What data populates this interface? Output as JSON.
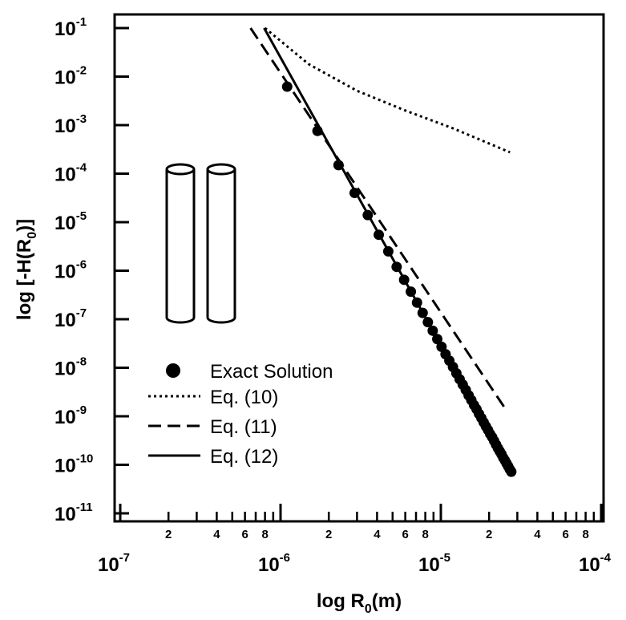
{
  "chart_data": {
    "type": "line",
    "xscale": "log",
    "yscale": "log",
    "xlabel": [
      "log R",
      "0",
      "(m)"
    ],
    "ylabel": [
      "log [-H(R",
      "0",
      ")]"
    ],
    "xlim": [
      1e-07,
      0.0001
    ],
    "ylim": [
      1e-11,
      0.1
    ],
    "xticks": [
      {
        "value": 1e-07,
        "label": [
          "10",
          "-7"
        ]
      },
      {
        "value": 1e-06,
        "label": [
          "10",
          "-6"
        ]
      },
      {
        "value": 1e-05,
        "label": [
          "10",
          "-5"
        ]
      },
      {
        "value": 0.0001,
        "label": [
          "10",
          "-4"
        ]
      }
    ],
    "xminorticks": [
      {
        "value": 2e-07,
        "label": "2"
      },
      {
        "value": 3e-07,
        "label": null
      },
      {
        "value": 4e-07,
        "label": "4"
      },
      {
        "value": 5e-07,
        "label": null
      },
      {
        "value": 6e-07,
        "label": "6"
      },
      {
        "value": 7e-07,
        "label": null
      },
      {
        "value": 8e-07,
        "label": "8"
      },
      {
        "value": 9e-07,
        "label": null
      },
      {
        "value": 2e-06,
        "label": "2"
      },
      {
        "value": 3e-06,
        "label": null
      },
      {
        "value": 4e-06,
        "label": "4"
      },
      {
        "value": 5e-06,
        "label": null
      },
      {
        "value": 6e-06,
        "label": "6"
      },
      {
        "value": 7e-06,
        "label": null
      },
      {
        "value": 8e-06,
        "label": "8"
      },
      {
        "value": 9e-06,
        "label": null
      },
      {
        "value": 2e-05,
        "label": "2"
      },
      {
        "value": 3e-05,
        "label": null
      },
      {
        "value": 4e-05,
        "label": "4"
      },
      {
        "value": 5e-05,
        "label": null
      },
      {
        "value": 6e-05,
        "label": "6"
      },
      {
        "value": 7e-05,
        "label": null
      },
      {
        "value": 8e-05,
        "label": "8"
      },
      {
        "value": 9e-05,
        "label": null
      }
    ],
    "yticks": [
      {
        "value": 0.1,
        "label": [
          "10",
          "-1"
        ]
      },
      {
        "value": 0.01,
        "label": [
          "10",
          "-2"
        ]
      },
      {
        "value": 0.001,
        "label": [
          "10",
          "-3"
        ]
      },
      {
        "value": 0.0001,
        "label": [
          "10",
          "-4"
        ]
      },
      {
        "value": 1e-05,
        "label": [
          "10",
          "-5"
        ]
      },
      {
        "value": 1e-06,
        "label": [
          "10",
          "-6"
        ]
      },
      {
        "value": 1e-07,
        "label": [
          "10",
          "-7"
        ]
      },
      {
        "value": 1e-08,
        "label": [
          "10",
          "-8"
        ]
      },
      {
        "value": 1e-09,
        "label": [
          "10",
          "-9"
        ]
      },
      {
        "value": 1e-10,
        "label": [
          "10",
          "-10"
        ]
      },
      {
        "value": 1e-11,
        "label": [
          "10",
          "-11"
        ]
      }
    ],
    "legend": "lower left",
    "series": [
      {
        "name": "Exact Solution",
        "mode": "markers",
        "color": "#000000",
        "x": [
          1.1e-06,
          1.7e-06,
          2.3e-06,
          2.9e-06,
          3.5e-06,
          4.1e-06,
          4.7e-06,
          5.3e-06,
          5.9e-06,
          6.5e-06,
          7.1e-06,
          7.7e-06,
          8.3e-06,
          8.9e-06,
          9.5e-06,
          1.01e-05,
          1.07e-05,
          1.13e-05,
          1.19e-05,
          1.25e-05,
          1.31e-05,
          1.37e-05,
          1.43e-05,
          1.49e-05,
          1.55e-05,
          1.61e-05,
          1.67e-05,
          1.73e-05,
          1.79e-05,
          1.85e-05,
          1.91e-05,
          1.97e-05,
          2.03e-05,
          2.09e-05,
          2.15e-05,
          2.21e-05,
          2.27e-05,
          2.33e-05,
          2.39e-05,
          2.45e-05,
          2.51e-05,
          2.57e-05,
          2.63e-05,
          2.69e-05,
          2.75e-05
        ],
        "values": [
          0.0062,
          0.00076,
          0.00015,
          4e-05,
          1.4e-05,
          5.5e-06,
          2.5e-06,
          1.2e-06,
          6.5e-07,
          3.7e-07,
          2.2e-07,
          1.35e-07,
          8.7e-08,
          5.8e-08,
          3.9e-08,
          2.7e-08,
          1.9e-08,
          1.4e-08,
          1.04e-08,
          7.7e-09,
          5.8e-09,
          4.5e-09,
          3.5e-09,
          2.7e-09,
          2.15e-09,
          1.7e-09,
          1.4e-09,
          1.12e-09,
          9.2e-10,
          7.5e-10,
          6.2e-10,
          5.2e-10,
          4.3e-10,
          3.7e-10,
          3.1e-10,
          2.6e-10,
          2.2e-10,
          1.9e-10,
          1.65e-10,
          1.4e-10,
          1.23e-10,
          1.07e-10,
          9.3e-11,
          8.1e-11,
          7.2e-11
        ]
      },
      {
        "name": "Eq. (10)",
        "mode": "line",
        "dash": "dotted",
        "color": "#000000",
        "x": [
          8e-07,
          1.5e-06,
          3e-06,
          6e-06,
          1.2e-05,
          2.7e-05
        ],
        "values": [
          0.1,
          0.018,
          0.0051,
          0.002,
          0.00085,
          0.000275
        ]
      },
      {
        "name": "Eq. (11)",
        "mode": "line",
        "dash": "dashed",
        "color": "#000000",
        "x": [
          6.5e-07,
          2.5e-05
        ],
        "values": [
          0.1,
          1.5e-09
        ]
      },
      {
        "name": "Eq. (12)",
        "mode": "line",
        "dash": "solid",
        "color": "#000000",
        "x": [
          7.9e-07,
          2.75e-05
        ],
        "values": [
          0.1,
          7.3e-11
        ]
      }
    ]
  }
}
